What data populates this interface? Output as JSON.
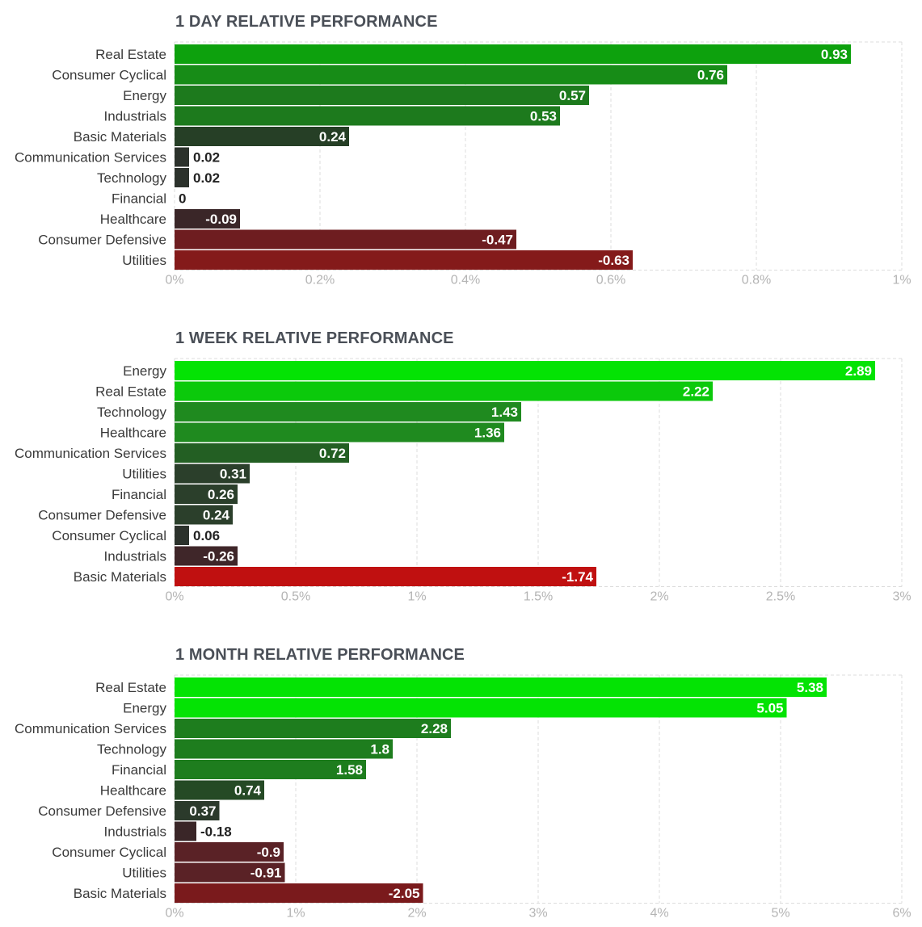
{
  "chart_data": [
    {
      "type": "bar",
      "orientation": "horizontal",
      "title": "1 DAY RELATIVE PERFORMANCE",
      "categories": [
        "Real Estate",
        "Consumer Cyclical",
        "Energy",
        "Industrials",
        "Basic Materials",
        "Communication Services",
        "Technology",
        "Financial",
        "Healthcare",
        "Consumer Defensive",
        "Utilities"
      ],
      "values": [
        0.93,
        0.76,
        0.57,
        0.53,
        0.24,
        0.02,
        0.02,
        0,
        -0.09,
        -0.47,
        -0.63
      ],
      "value_labels": [
        "0.93",
        "0.76",
        "0.57",
        "0.53",
        "0.24",
        "0.02",
        "0.02",
        "0",
        "-0.09",
        "-0.47",
        "-0.63"
      ],
      "xlim": [
        0,
        1
      ],
      "xticks": [
        0,
        0.2,
        0.4,
        0.6,
        0.8,
        1
      ],
      "xtick_labels": [
        "0%",
        "0.2%",
        "0.4%",
        "0.6%",
        "0.8%",
        "1%"
      ],
      "xlabel": "",
      "ylabel": "",
      "bar_length": "absolute value",
      "colors": [
        "#0da10d",
        "#178c17",
        "#1d7a1d",
        "#1d7a1d",
        "#263f26",
        "#2c322c",
        "#2c322c",
        "#2c322c",
        "#3a2628",
        "#6e1d20",
        "#841a1a"
      ]
    },
    {
      "type": "bar",
      "orientation": "horizontal",
      "title": "1 WEEK RELATIVE PERFORMANCE",
      "categories": [
        "Energy",
        "Real Estate",
        "Technology",
        "Healthcare",
        "Communication Services",
        "Utilities",
        "Financial",
        "Consumer Defensive",
        "Consumer Cyclical",
        "Industrials",
        "Basic Materials"
      ],
      "values": [
        2.89,
        2.22,
        1.43,
        1.36,
        0.72,
        0.31,
        0.26,
        0.24,
        0.06,
        -0.26,
        -1.74
      ],
      "value_labels": [
        "2.89",
        "2.22",
        "1.43",
        "1.36",
        "0.72",
        "0.31",
        "0.26",
        "0.24",
        "0.06",
        "-0.26",
        "-1.74"
      ],
      "xlim": [
        0,
        3
      ],
      "xticks": [
        0,
        0.5,
        1,
        1.5,
        2,
        2.5,
        3
      ],
      "xtick_labels": [
        "0%",
        "0.5%",
        "1%",
        "1.5%",
        "2%",
        "2.5%",
        "3%"
      ],
      "xlabel": "",
      "ylabel": "",
      "bar_length": "absolute value",
      "colors": [
        "#04e304",
        "#0bc90b",
        "#1f8a1f",
        "#1f8a1f",
        "#235f23",
        "#2b3f2b",
        "#2b3f2b",
        "#2b3f2b",
        "#2c322c",
        "#3f2629",
        "#c01010"
      ]
    },
    {
      "type": "bar",
      "orientation": "horizontal",
      "title": "1 MONTH RELATIVE PERFORMANCE",
      "categories": [
        "Real Estate",
        "Energy",
        "Communication Services",
        "Technology",
        "Financial",
        "Healthcare",
        "Consumer Defensive",
        "Industrials",
        "Consumer Cyclical",
        "Utilities",
        "Basic Materials"
      ],
      "values": [
        5.38,
        5.05,
        2.28,
        1.8,
        1.58,
        0.74,
        0.37,
        -0.18,
        -0.9,
        -0.91,
        -2.05
      ],
      "value_labels": [
        "5.38",
        "5.05",
        "2.28",
        "1.8",
        "1.58",
        "0.74",
        "0.37",
        "-0.18",
        "-0.9",
        "-0.91",
        "-2.05"
      ],
      "xlim": [
        0,
        6
      ],
      "xticks": [
        0,
        1,
        2,
        3,
        4,
        5,
        6
      ],
      "xtick_labels": [
        "0%",
        "1%",
        "2%",
        "3%",
        "4%",
        "5%",
        "6%"
      ],
      "xlabel": "",
      "ylabel": "",
      "bar_length": "absolute value",
      "colors": [
        "#04e304",
        "#04e304",
        "#1e7d1e",
        "#1e7d1e",
        "#1e7d1e",
        "#254a25",
        "#2b3a2b",
        "#3a2628",
        "#5a2226",
        "#5a2226",
        "#7a1a1c"
      ]
    }
  ]
}
